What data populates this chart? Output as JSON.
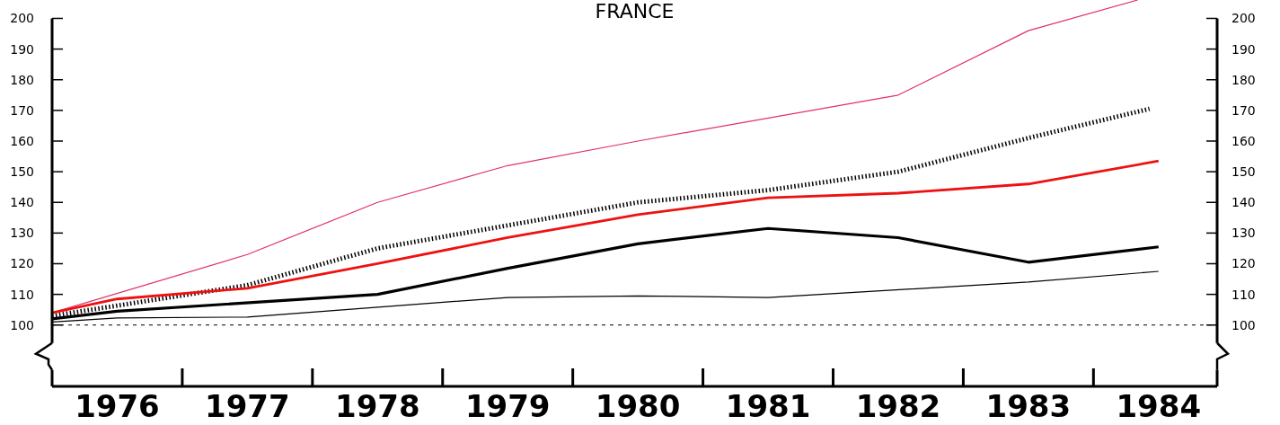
{
  "chart_data": {
    "type": "line",
    "title": "FRANCE",
    "xlim": [
      1975.5,
      1984.45
    ],
    "ylim": [
      80,
      206
    ],
    "xticks": [
      1976,
      1977,
      1978,
      1979,
      1980,
      1981,
      1982,
      1983,
      1984
    ],
    "yticks": [
      100,
      110,
      120,
      130,
      140,
      150,
      160,
      170,
      180,
      190,
      200
    ],
    "y2lim": [
      80,
      206
    ],
    "y2ticks": [
      100,
      110,
      120,
      130,
      140,
      150,
      160,
      170,
      180,
      190,
      200
    ],
    "grid": false,
    "ref_lines": [
      {
        "axis": "y",
        "value": 100,
        "line_style": "dashed",
        "color": "#000000"
      }
    ],
    "series": [
      {
        "color": "#e0306a",
        "line_style": "solid",
        "x": [
          1975.5,
          1977,
          1978,
          1979,
          1980,
          1982,
          1983,
          1983.84
        ],
        "values": [
          104,
          123,
          140,
          152,
          160,
          175,
          196,
          206
        ]
      },
      {
        "color": "#000000",
        "line_style": "dotted",
        "x": [
          1975.5,
          1977,
          1978,
          1979,
          1980,
          1981,
          1982,
          1983,
          1983.93
        ],
        "values": [
          103,
          113,
          125,
          132.5,
          140,
          144,
          150,
          161,
          170.5
        ]
      },
      {
        "color": "#ee1111",
        "line_style": "solid",
        "x": [
          1975.5,
          1976,
          1977,
          1978,
          1979,
          1980,
          1981,
          1982,
          1983,
          1984
        ],
        "values": [
          104,
          108.5,
          112,
          120,
          128.5,
          136,
          141.5,
          143,
          146,
          153.5
        ]
      },
      {
        "color": "#000000",
        "line_style": "solid",
        "x": [
          1975.5,
          1976,
          1978,
          1979,
          1980,
          1981,
          1982,
          1983,
          1984
        ],
        "values": [
          102,
          104.5,
          110,
          118.5,
          126.5,
          131.5,
          128.5,
          120.5,
          125.5
        ]
      },
      {
        "color": "#000000",
        "line_style": "solid",
        "x": [
          1975.5,
          1976,
          1977,
          1979,
          1980,
          1981,
          1983,
          1984
        ],
        "values": [
          101,
          102.3,
          102.6,
          109,
          109.5,
          109,
          114,
          117.5
        ]
      }
    ]
  }
}
